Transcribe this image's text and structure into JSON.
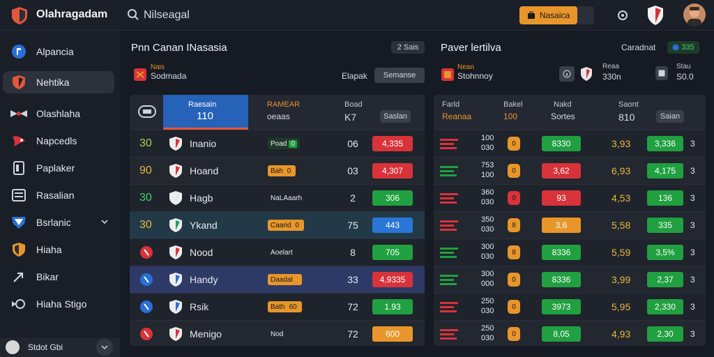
{
  "app": {
    "title": "Olahragadam"
  },
  "search": {
    "value": "Nilseagal"
  },
  "topbar": {
    "action_label": "Nasaica"
  },
  "sidebar": {
    "items": [
      {
        "label": "Alpancia"
      },
      {
        "label": "Nehtika"
      },
      {
        "label": "Olashlaha"
      },
      {
        "label": "Napcedls"
      },
      {
        "label": "Paplaker"
      },
      {
        "label": "Rasalian"
      },
      {
        "label": "Bsrlanic"
      },
      {
        "label": "Hiaha"
      },
      {
        "label": "Bikar"
      },
      {
        "label": "Hiaha Stigo"
      }
    ],
    "footer_label": "Stdot Gbi"
  },
  "left_panel": {
    "title": "Pnn Canan INasasia",
    "pill": "2 Sais",
    "sub_name": "Sodmada",
    "sub_tag": "Nais",
    "elapsed_label": "Elapak",
    "button": "Semanse",
    "header": {
      "tab_top": "Raesain",
      "tab_bottom": "110",
      "col2_top": "RAMEAR",
      "col2_bottom": "oeaas",
      "col3_top": "Boad",
      "col3_bottom": "K7",
      "col4": "Saslan"
    },
    "rows": [
      {
        "num": "30",
        "name": "Inanio",
        "badge": "Poad",
        "badge_val": "0",
        "count": "06",
        "value": "4,335",
        "value_color": "#d8333a"
      },
      {
        "num": "90",
        "name": "Hoand",
        "badge": "Bah",
        "badge_val": "0",
        "count": "03",
        "value": "4,307",
        "value_color": "#d8333a"
      },
      {
        "num": "30",
        "name": "Hagb",
        "badge": "NaLAaarh",
        "badge_val": "",
        "count": "2",
        "value": "306",
        "value_color": "#20a040"
      },
      {
        "num": "30",
        "name": "Ykand",
        "badge": "Caarid",
        "badge_val": "0",
        "count": "75",
        "value": "443",
        "value_color": "#2a76d6"
      },
      {
        "num": "",
        "name": "Nood",
        "badge": "Aoelart",
        "badge_val": "",
        "count": "8",
        "value": "705",
        "value_color": "#20a040"
      },
      {
        "num": "",
        "name": "Handy",
        "badge": "Daadal",
        "badge_val": "",
        "count": "33",
        "value": "4,9335",
        "value_color": "#d8333a"
      },
      {
        "num": "",
        "name": "Rsik",
        "badge": "Bath",
        "badge_val": "60",
        "count": "72",
        "value": "1.93",
        "value_color": "#20a040"
      },
      {
        "num": "",
        "name": "Menigo",
        "badge": "Nod",
        "badge_val": "",
        "count": "72",
        "value": "600",
        "value_color": "#e8962b"
      }
    ]
  },
  "right_panel": {
    "title": "Paver lertilva",
    "right_label": "Caradnat",
    "right_badge": "335",
    "sub_tag": "Nean",
    "sub_name": "Stohnnoy",
    "mid_top": "Reaa",
    "mid_bottom": "330n",
    "end_top": "Stau",
    "end_bottom": "S0.0",
    "header": {
      "c1_top": "Farld",
      "c1_bottom": "Reanaa",
      "c2_top": "Bakel",
      "c2_bottom": "100",
      "c3_top": "Nakd",
      "c3_bottom": "Sortes",
      "c4_top": "Saont",
      "c4_bottom": "810",
      "c5": "Saian"
    },
    "rows": [
      {
        "top": "100",
        "bottom": "030",
        "dot": "0",
        "dot_color": "#e8962b",
        "box": "8330",
        "box_color": "#20a040",
        "price": "3,93",
        "box2": "3,336",
        "end": "3"
      },
      {
        "top": "753",
        "bottom": "100",
        "dot": "0",
        "dot_color": "#e8962b",
        "box": "3,62",
        "box_color": "#d8333a",
        "price": "6,93",
        "box2": "4,175",
        "end": "3"
      },
      {
        "top": "360",
        "bottom": "030",
        "dot": "0",
        "dot_color": "#d8333a",
        "box": "93",
        "box_color": "#d8333a",
        "price": "4,53",
        "box2": "136",
        "end": "3"
      },
      {
        "top": "350",
        "bottom": "030",
        "dot": "8",
        "dot_color": "#e8962b",
        "box": "3,6",
        "box_color": "#e8962b",
        "price": "5,58",
        "box2": "335",
        "end": "3"
      },
      {
        "top": "300",
        "bottom": "030",
        "dot": "8",
        "dot_color": "#e8962b",
        "box": "8336",
        "box_color": "#20a040",
        "price": "5,59",
        "box2": "3,5%",
        "end": "3"
      },
      {
        "top": "300",
        "bottom": "000",
        "dot": "0",
        "dot_color": "#e8962b",
        "box": "8336",
        "box_color": "#20a040",
        "price": "3,99",
        "box2": "2,37",
        "end": "3"
      },
      {
        "top": "250",
        "bottom": "030",
        "dot": "0",
        "dot_color": "#e8962b",
        "box": "3973",
        "box_color": "#20a040",
        "price": "5,95",
        "box2": "2,330",
        "end": "3"
      },
      {
        "top": "250",
        "bottom": "030",
        "dot": "0",
        "dot_color": "#e8962b",
        "box": "8,05",
        "box_color": "#20a040",
        "price": "4,93",
        "box2": "2,30",
        "end": "3"
      }
    ]
  }
}
